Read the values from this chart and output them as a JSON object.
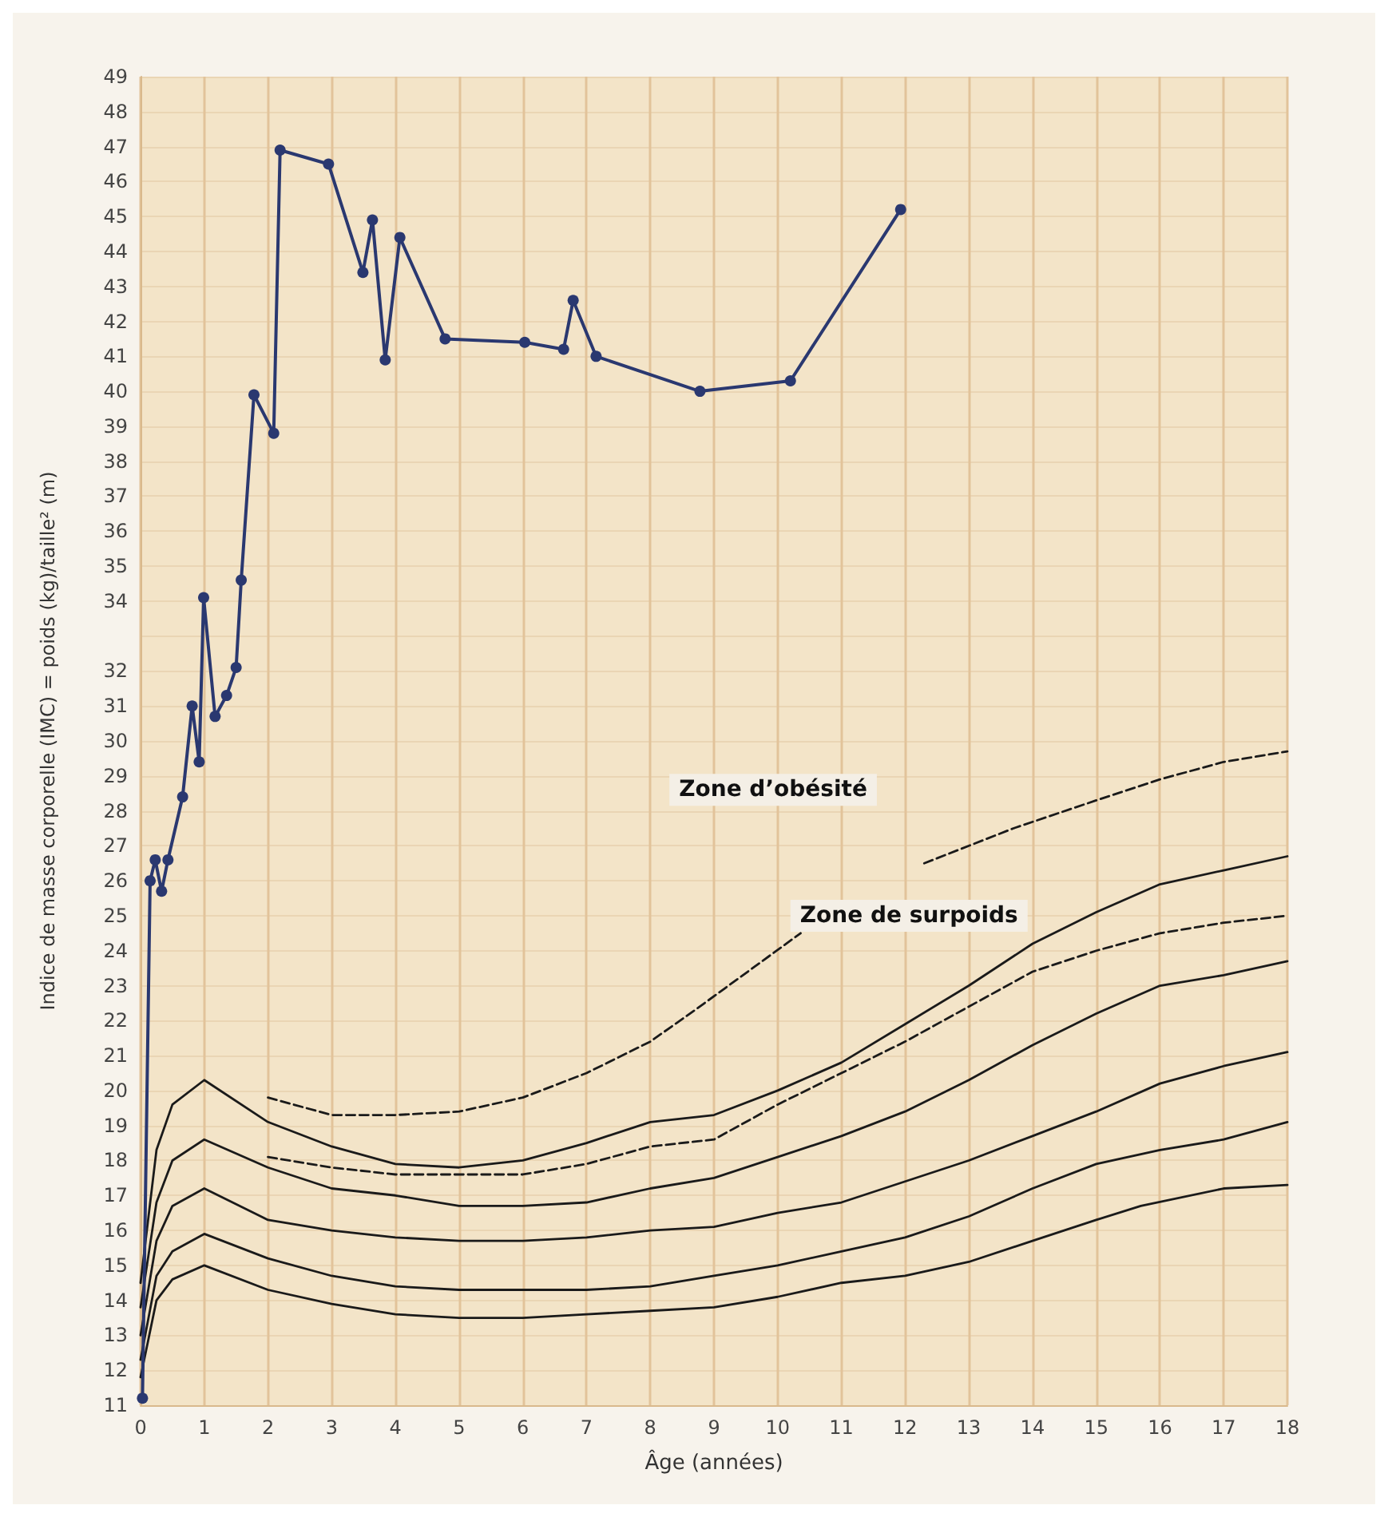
{
  "chart_data": {
    "type": "line",
    "xlabel": "Âge (années)",
    "ylabel": "Indice de masse corporelle (IMC) = poids (kg)/taille² (m)",
    "xlim": [
      0,
      18
    ],
    "xticks": [
      0,
      1,
      2,
      3,
      4,
      5,
      6,
      7,
      8,
      9,
      10,
      11,
      12,
      13,
      14,
      15,
      16,
      17,
      18
    ],
    "ylim": [
      11,
      49
    ],
    "yticks": [
      11,
      12,
      13,
      14,
      15,
      16,
      17,
      18,
      19,
      20,
      21,
      22,
      23,
      24,
      25,
      26,
      27,
      28,
      29,
      30,
      31,
      32,
      {
        "value": 33,
        "label": null
      },
      34,
      35,
      36,
      37,
      38,
      39,
      40,
      41,
      42,
      43,
      44,
      45,
      46,
      47,
      48,
      49
    ],
    "grid": true,
    "annotations": [
      "Zone d’obésité",
      "Zone de surpoids"
    ],
    "series": [
      {
        "color": "#1a1a1a",
        "marker": "none",
        "line_style": "solid",
        "x": [
          0,
          0.25,
          0.5,
          1,
          2,
          3,
          4,
          5,
          6,
          7,
          8,
          9,
          10,
          11,
          12,
          13,
          14,
          15,
          16,
          17,
          18
        ],
        "values": [
          14.5,
          18.3,
          19.6,
          20.3,
          19.1,
          18.4,
          17.9,
          17.8,
          18.0,
          18.5,
          19.1,
          19.3,
          20.0,
          20.8,
          21.9,
          23.0,
          24.2,
          25.1,
          25.9,
          26.3,
          26.7
        ]
      },
      {
        "color": "#1a1a1a",
        "marker": "none",
        "line_style": "dashed",
        "x": [
          2,
          3,
          4,
          5,
          6,
          7,
          8,
          8.7,
          10.36,
          11.3,
          12.3,
          13.7,
          15,
          16,
          17,
          18
        ],
        "values": [
          19.8,
          19.3,
          19.3,
          19.4,
          19.8,
          20.5,
          21.4,
          22.3,
          24.5,
          null,
          26.5,
          27.5,
          28.3,
          28.9,
          29.4,
          29.7
        ]
      },
      {
        "color": "#1a1a1a",
        "marker": "none",
        "line_style": "dashed",
        "x": [
          2,
          3,
          4,
          5,
          6,
          7,
          8,
          9,
          10,
          11,
          12,
          13,
          14,
          15,
          16,
          17,
          18
        ],
        "values": [
          18.1,
          17.8,
          17.6,
          17.6,
          17.6,
          17.9,
          18.4,
          18.6,
          19.6,
          20.5,
          21.4,
          22.4,
          23.4,
          24.0,
          24.5,
          24.8,
          25.0
        ]
      },
      {
        "color": "#1a1a1a",
        "marker": "none",
        "line_style": "solid",
        "x": [
          0,
          0.25,
          0.5,
          1,
          2,
          3,
          4,
          5,
          6,
          7,
          8,
          9,
          10,
          11,
          12,
          13,
          14,
          15,
          16,
          17,
          18
        ],
        "values": [
          13.8,
          16.8,
          18.0,
          18.6,
          17.8,
          17.2,
          17.0,
          16.7,
          16.7,
          16.8,
          17.2,
          17.5,
          18.1,
          18.7,
          19.4,
          20.3,
          21.3,
          22.2,
          23.0,
          23.3,
          23.7
        ]
      },
      {
        "color": "#1a1a1a",
        "marker": "none",
        "line_style": "solid",
        "x": [
          0,
          0.25,
          0.5,
          1,
          2,
          3,
          4,
          5,
          6,
          7,
          8,
          9,
          10,
          11,
          12,
          13,
          14,
          15,
          16,
          17,
          18
        ],
        "values": [
          13.0,
          15.7,
          16.7,
          17.2,
          16.3,
          16.0,
          15.8,
          15.7,
          15.7,
          15.8,
          16.0,
          16.1,
          16.5,
          16.8,
          17.4,
          18.0,
          18.7,
          19.4,
          20.2,
          20.7,
          21.1
        ]
      },
      {
        "color": "#1a1a1a",
        "marker": "none",
        "line_style": "solid",
        "x": [
          0,
          0.25,
          0.5,
          1,
          2,
          3,
          4,
          5,
          6,
          7,
          8,
          9,
          10,
          11,
          12,
          13,
          14,
          15,
          16,
          17,
          18
        ],
        "values": [
          12.3,
          14.7,
          15.4,
          15.9,
          15.2,
          14.7,
          14.4,
          14.3,
          14.3,
          14.3,
          14.4,
          14.7,
          15.0,
          15.4,
          15.8,
          16.4,
          17.2,
          17.9,
          18.3,
          18.6,
          19.1
        ]
      },
      {
        "color": "#1a1a1a",
        "marker": "none",
        "line_style": "solid",
        "x": [
          0,
          0.25,
          0.5,
          1,
          2,
          3,
          4,
          5,
          6,
          7,
          8,
          9,
          10,
          11,
          12,
          13,
          14,
          15,
          15.7,
          17,
          18
        ],
        "values": [
          11.8,
          14.0,
          14.6,
          15.0,
          14.3,
          13.9,
          13.6,
          13.5,
          13.5,
          13.6,
          13.7,
          13.8,
          14.1,
          14.5,
          14.7,
          15.1,
          15.7,
          16.3,
          16.7,
          17.2,
          17.3
        ]
      },
      {
        "color": "#2a3870",
        "marker": "circle",
        "line_style": "solid",
        "x": [
          0.03,
          0.15,
          0.23,
          0.33,
          0.43,
          0.66,
          0.81,
          0.92,
          0.99,
          1.17,
          1.35,
          1.5,
          1.58,
          1.78,
          2.09,
          2.19,
          2.95,
          3.49,
          3.64,
          3.84,
          4.07,
          4.78,
          6.03,
          6.64,
          6.79,
          7.15,
          8.78,
          10.2,
          11.93
        ],
        "values": [
          11.2,
          26.0,
          26.6,
          25.7,
          26.6,
          28.4,
          31.0,
          29.4,
          34.1,
          30.7,
          31.3,
          32.1,
          34.6,
          39.9,
          38.8,
          46.9,
          46.5,
          43.4,
          44.9,
          40.9,
          44.4,
          41.5,
          41.4,
          41.2,
          42.6,
          41.0,
          40.0,
          40.3,
          45.2
        ]
      }
    ]
  }
}
